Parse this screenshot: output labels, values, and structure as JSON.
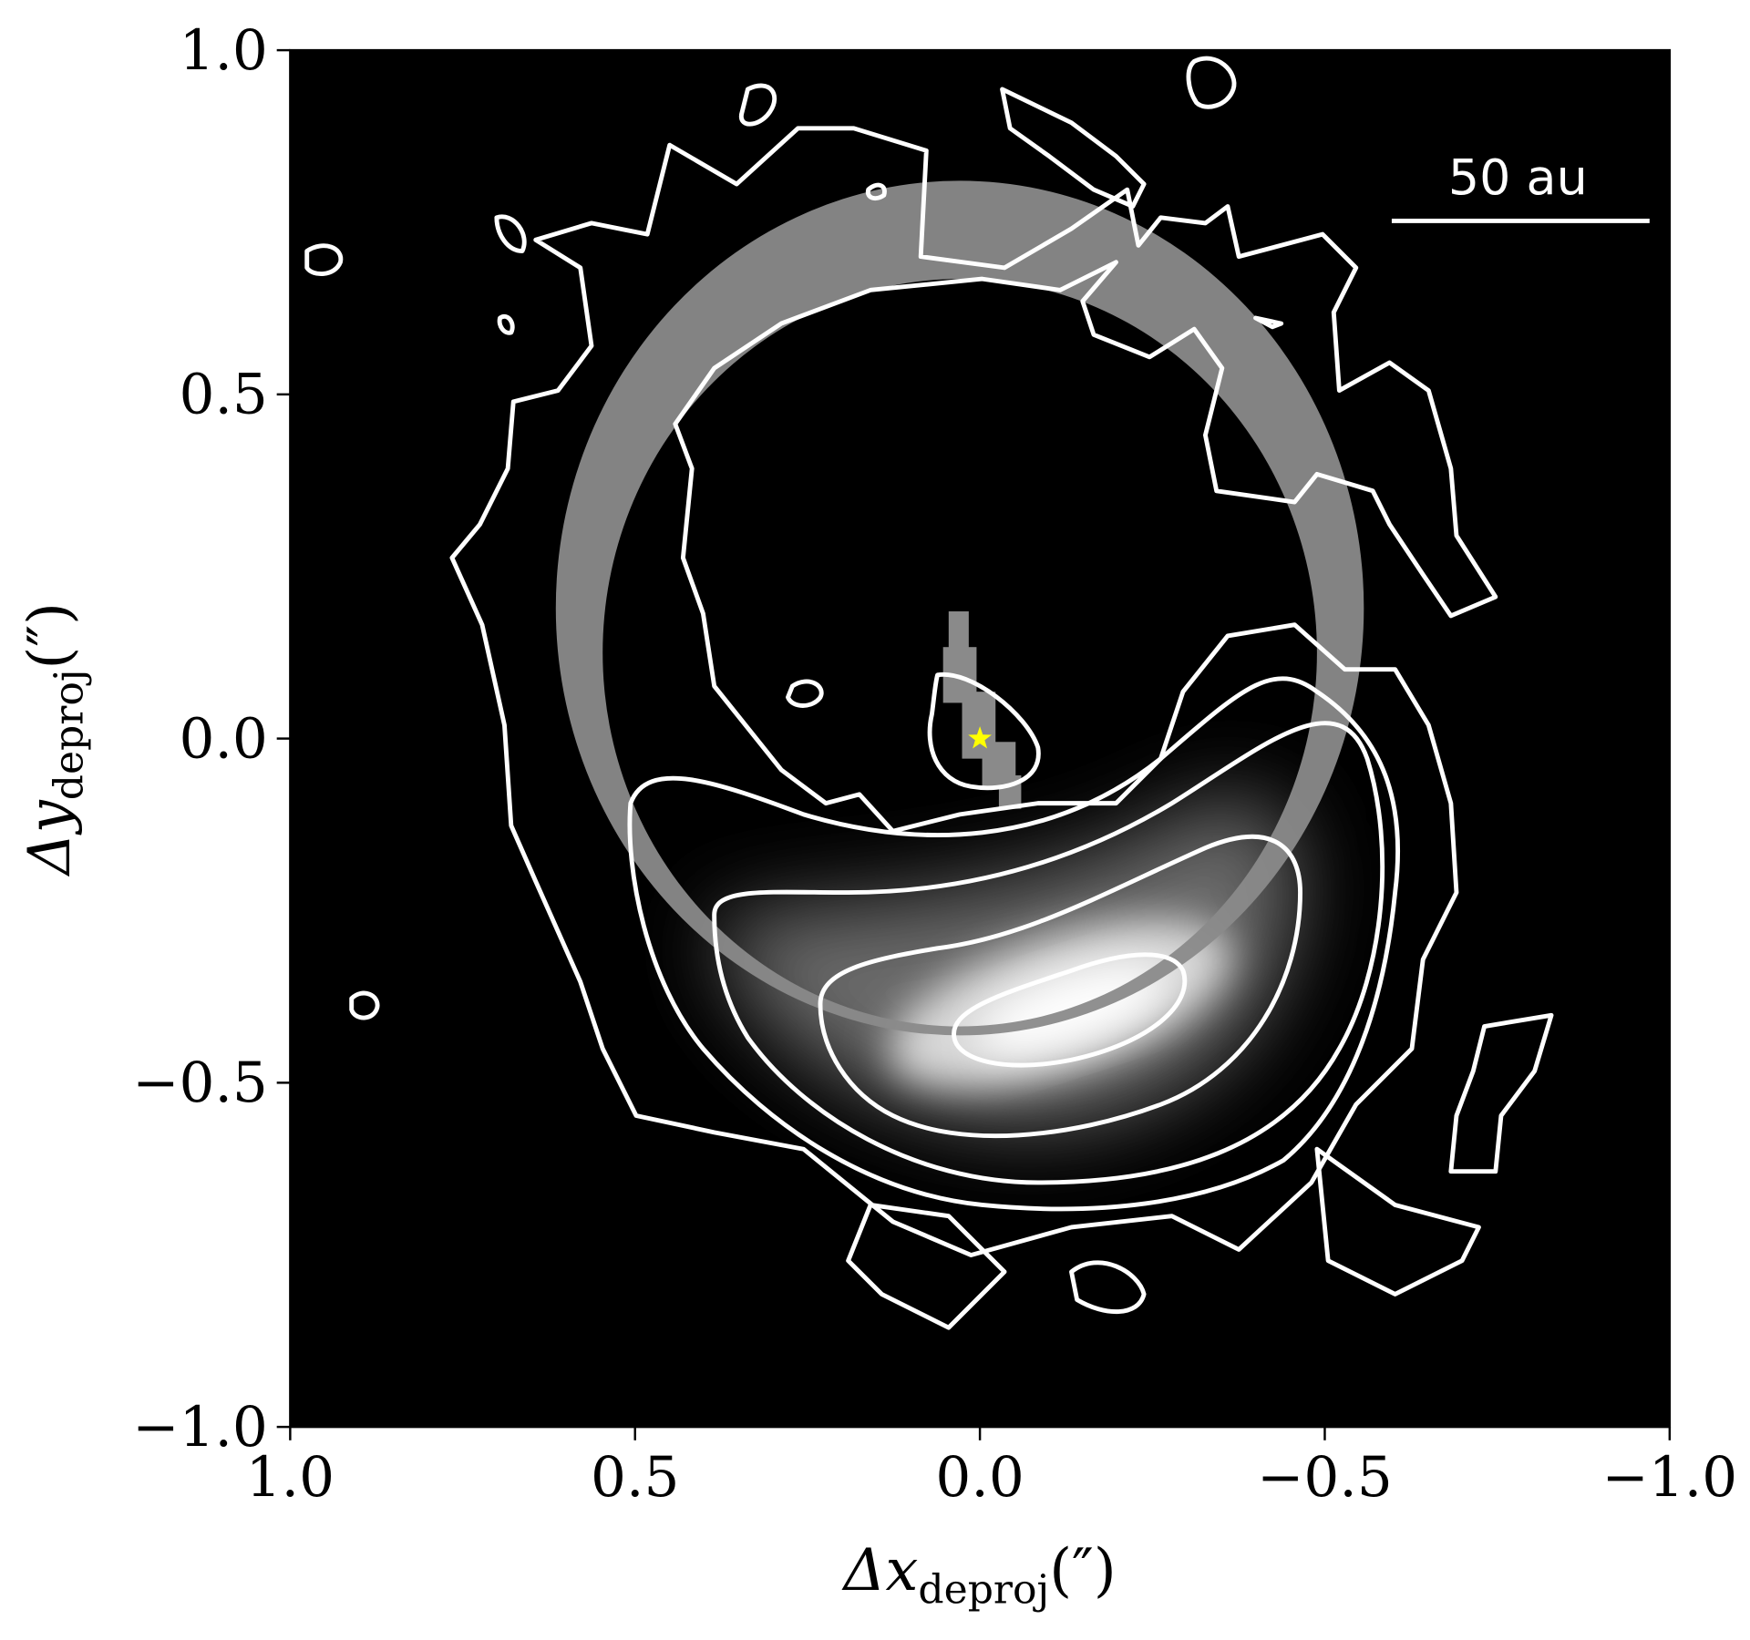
{
  "chart_data": {
    "type": "image",
    "xlabel": {
      "symbol": "Δx",
      "subscript": "deproj",
      "unit": "(″)"
    },
    "ylabel": {
      "symbol": "Δy",
      "subscript": "deproj",
      "unit": "(″)"
    },
    "xlim": [
      1.0,
      -1.0
    ],
    "ylim": [
      -1.0,
      1.0
    ],
    "xticks": [
      {
        "value": 1.0,
        "label": "1.0"
      },
      {
        "value": 0.5,
        "label": "0.5"
      },
      {
        "value": 0.0,
        "label": "0.0"
      },
      {
        "value": -0.5,
        "label": "−0.5"
      },
      {
        "value": -1.0,
        "label": "−1.0"
      }
    ],
    "yticks": [
      {
        "value": -1.0,
        "label": "−1.0"
      },
      {
        "value": -0.5,
        "label": "−0.5"
      },
      {
        "value": 0.0,
        "label": "0.0"
      },
      {
        "value": 0.5,
        "label": "0.5"
      },
      {
        "value": 1.0,
        "label": "1.0"
      }
    ],
    "star": {
      "x": 0,
      "y": 0,
      "color": "#ffff00"
    },
    "scale_bar_label": "50 au"
  }
}
